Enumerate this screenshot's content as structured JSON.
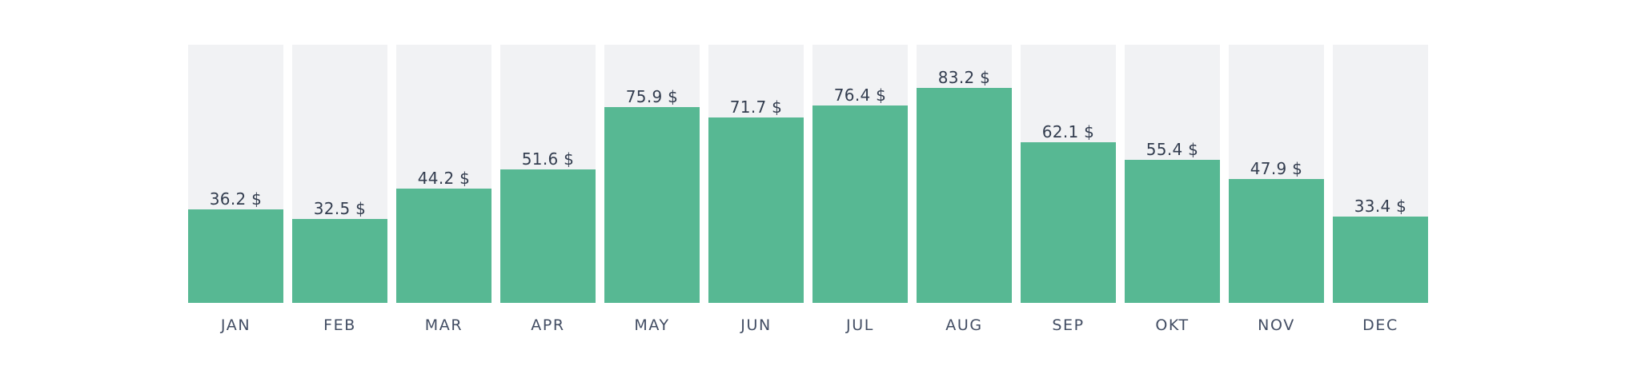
{
  "chart_data": {
    "type": "bar",
    "title": "",
    "xlabel": "",
    "ylabel": "",
    "categories": [
      "JAN",
      "FEB",
      "MAR",
      "APR",
      "MAY",
      "JUN",
      "JUL",
      "AUG",
      "SEP",
      "OKT",
      "NOV",
      "DEC"
    ],
    "values": [
      36.2,
      32.5,
      44.2,
      51.6,
      75.9,
      71.7,
      76.4,
      83.2,
      62.1,
      55.4,
      47.9,
      33.4
    ],
    "unit": "$",
    "data_labels": [
      "36.2 $",
      "32.5 $",
      "44.2 $",
      "51.6 $",
      "75.9 $",
      "71.7 $",
      "76.4 $",
      "83.2 $",
      "62.1 $",
      "55.4 $",
      "47.9 $",
      "33.4 $"
    ],
    "ylim": [
      0,
      100
    ],
    "grid": false,
    "legend": false,
    "layout": "full-height background track per bar, value label above fill, category label below",
    "colors": {
      "bar_fill": "#57B893",
      "bar_track": "#F1F2F4",
      "value_label": "#333D4F",
      "category_label": "#424D63",
      "background": "#FFFFFF"
    }
  }
}
